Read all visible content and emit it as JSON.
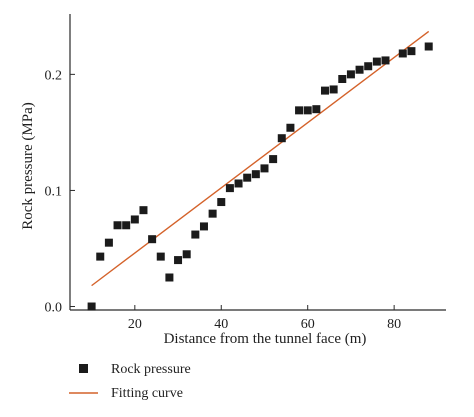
{
  "chart_data": {
    "type": "scatter",
    "title": "",
    "xlabel": "Distance from the tunnel face (m)",
    "ylabel": "Rock pressure (MPa)",
    "xlim": [
      5,
      92
    ],
    "ylim": [
      -0.003,
      0.252
    ],
    "x_ticks": [
      20,
      40,
      60,
      80
    ],
    "x_tick_labels": [
      "20",
      "40",
      "60",
      "80"
    ],
    "y_ticks": [
      0.0,
      0.1,
      0.2
    ],
    "y_tick_labels": [
      "0.0",
      "0.1",
      "0.2"
    ],
    "grid": false,
    "legend_position": "bottom",
    "colors": {
      "points": "#1b1b1b",
      "fit_line": "#d4622a",
      "axis": "#2a2a2a"
    },
    "series": [
      {
        "name": "Rock pressure",
        "kind": "scatter",
        "marker": "square",
        "points": [
          [
            10,
            0.0
          ],
          [
            12,
            0.043
          ],
          [
            14,
            0.055
          ],
          [
            16,
            0.07
          ],
          [
            18,
            0.07
          ],
          [
            20,
            0.075
          ],
          [
            22,
            0.083
          ],
          [
            24,
            0.058
          ],
          [
            26,
            0.043
          ],
          [
            28,
            0.025
          ],
          [
            30,
            0.04
          ],
          [
            32,
            0.045
          ],
          [
            34,
            0.062
          ],
          [
            36,
            0.069
          ],
          [
            38,
            0.08
          ],
          [
            40,
            0.09
          ],
          [
            42,
            0.102
          ],
          [
            44,
            0.106
          ],
          [
            46,
            0.111
          ],
          [
            48,
            0.114
          ],
          [
            50,
            0.119
          ],
          [
            52,
            0.127
          ],
          [
            54,
            0.145
          ],
          [
            56,
            0.154
          ],
          [
            58,
            0.169
          ],
          [
            60,
            0.169
          ],
          [
            62,
            0.17
          ],
          [
            64,
            0.186
          ],
          [
            66,
            0.187
          ],
          [
            68,
            0.196
          ],
          [
            70,
            0.2
          ],
          [
            72,
            0.204
          ],
          [
            74,
            0.207
          ],
          [
            76,
            0.211
          ],
          [
            78,
            0.212
          ],
          [
            82,
            0.218
          ],
          [
            84,
            0.22
          ],
          [
            88,
            0.224
          ]
        ]
      },
      {
        "name": "Fitting curve",
        "kind": "line",
        "points": [
          [
            10,
            0.018
          ],
          [
            88,
            0.237
          ]
        ]
      }
    ]
  }
}
